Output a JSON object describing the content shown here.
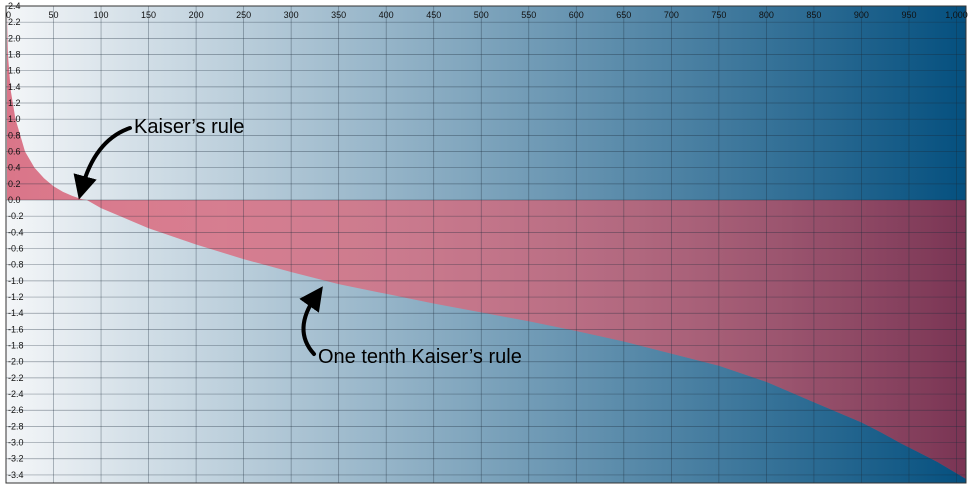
{
  "chart_data": {
    "type": "area",
    "title": "",
    "xlabel": "",
    "ylabel": "",
    "xlim": [
      0,
      1010
    ],
    "ylim": [
      -3.5,
      2.4
    ],
    "grid": true,
    "x_ticks": [
      0,
      50,
      100,
      150,
      200,
      250,
      300,
      350,
      400,
      450,
      500,
      550,
      600,
      650,
      700,
      750,
      800,
      850,
      900,
      950,
      1000
    ],
    "x_tick_labels": [
      "0",
      "50",
      "100",
      "150",
      "200",
      "250",
      "300",
      "350",
      "400",
      "450",
      "500",
      "550",
      "600",
      "650",
      "700",
      "750",
      "800",
      "850",
      "900",
      "950",
      "1,000"
    ],
    "y_ticks": [
      2.4,
      2.2,
      2.0,
      1.8,
      1.6,
      1.4,
      1.2,
      1.0,
      0.8,
      0.6,
      0.4,
      0.2,
      0.0,
      -0.2,
      -0.4,
      -0.6,
      -0.8,
      -1.0,
      -1.2,
      -1.4,
      -1.6,
      -1.8,
      -2.0,
      -2.2,
      -2.4,
      -2.6,
      -2.8,
      -3.0,
      -3.2,
      -3.4
    ],
    "y_tick_labels": [
      "2.4",
      "2.2",
      "2.0",
      "1.8",
      "1.6",
      "1.4",
      "1.2",
      "1.0",
      "0.8",
      "0.6",
      "0.4",
      "0.2",
      "0.0",
      "-0.2",
      "-0.4",
      "-0.6",
      "-0.8",
      "-1.0",
      "-1.2",
      "-1.4",
      "-1.6",
      "-1.8",
      "-2.0",
      "-2.2",
      "-2.4",
      "-2.6",
      "-2.8",
      "-3.0",
      "-3.2",
      "-3.4"
    ],
    "series": [
      {
        "x": [
          1,
          2,
          5,
          10,
          15,
          20,
          30,
          40,
          50,
          60,
          70,
          80,
          85,
          100,
          150,
          200,
          250,
          300,
          350,
          400,
          450,
          500,
          550,
          600,
          650,
          700,
          750,
          800,
          850,
          900,
          920,
          940,
          960,
          980,
          1000,
          1010
        ],
        "y": [
          2.3,
          1.8,
          1.35,
          1.0,
          0.8,
          0.6,
          0.4,
          0.27,
          0.17,
          0.1,
          0.05,
          0.01,
          0.0,
          -0.1,
          -0.35,
          -0.55,
          -0.73,
          -0.89,
          -1.04,
          -1.16,
          -1.28,
          -1.39,
          -1.5,
          -1.62,
          -1.75,
          -1.9,
          -2.05,
          -2.25,
          -2.5,
          -2.75,
          -2.87,
          -3.0,
          -3.12,
          -3.24,
          -3.38,
          -3.45
        ],
        "color": "#d86a7f"
      }
    ],
    "background_gradient": [
      "#f4f6f8",
      "#05507f"
    ],
    "annotations": [
      {
        "text": "Kaiser’s rule",
        "x": 85,
        "y": 0.0
      },
      {
        "text": "One tenth Kaiser’s rule",
        "x": 340,
        "y": -1.0
      }
    ]
  }
}
